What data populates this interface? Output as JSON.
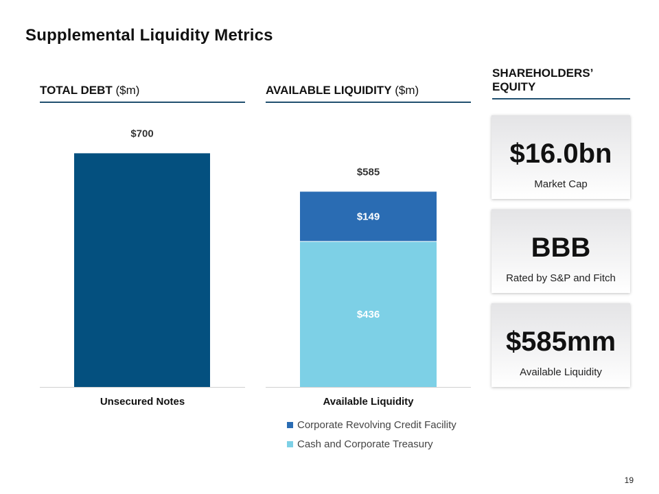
{
  "page": {
    "title": "Supplemental Liquidity Metrics",
    "page_number": "19"
  },
  "sections": {
    "debt": {
      "title": "TOTAL DEBT",
      "unit": "($m)"
    },
    "liquidity": {
      "title": "AVAILABLE LIQUIDITY",
      "unit": "($m)"
    },
    "equity": {
      "title_line1": "SHAREHOLDERS’",
      "title_line2": "EQUITY"
    }
  },
  "cards": [
    {
      "value": "$16.0bn",
      "label": "Market Cap"
    },
    {
      "value": "BBB",
      "label": "Rated by S&P and Fitch"
    },
    {
      "value": "$585mm",
      "label": "Available Liquidity"
    }
  ],
  "chart_data": [
    {
      "type": "bar",
      "title": "TOTAL DEBT ($m)",
      "categories": [
        "Unsecured Notes"
      ],
      "series": [
        {
          "values": [
            700
          ],
          "color": "#04507f"
        }
      ],
      "total_labels": [
        "$700"
      ],
      "ylim": [
        0,
        820
      ]
    },
    {
      "type": "bar",
      "stacked": true,
      "title": "AVAILABLE LIQUIDITY ($m)",
      "categories": [
        "Available Liquidity"
      ],
      "series": [
        {
          "name": "Cash and Corporate Treasury",
          "values": [
            436
          ],
          "label": "$436",
          "color": "#7dd0e6"
        },
        {
          "name": "Corporate Revolving Credit Facility",
          "values": [
            149
          ],
          "label": "$149",
          "color": "#2a6cb3"
        }
      ],
      "total_labels": [
        "$585"
      ],
      "ylim": [
        0,
        820
      ]
    }
  ],
  "legend": [
    {
      "label": "Corporate Revolving Credit Facility",
      "color": "#2a6cb3"
    },
    {
      "label": "Cash and Corporate Treasury",
      "color": "#7dd0e6"
    }
  ]
}
